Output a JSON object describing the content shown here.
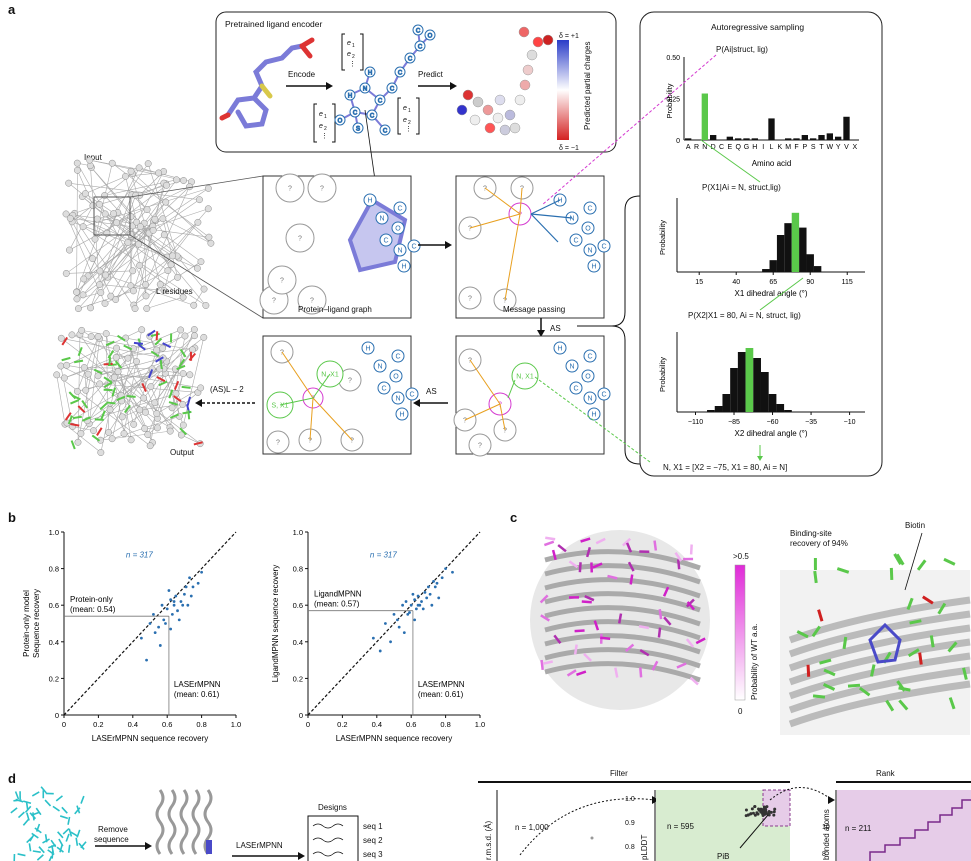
{
  "panel_labels": {
    "a": "a",
    "b": "b",
    "c": "c",
    "d": "d"
  },
  "panel_a": {
    "encoder_title": "Pretrained ligand encoder",
    "encode_label": "Encode",
    "predict_label": "Predict",
    "charges_label": "Predicted partial charges",
    "delta_plus": "δ = +1",
    "delta_minus": "δ = −1",
    "embed_labels": [
      "e1",
      "e2",
      "⋮"
    ],
    "input_label": "Input",
    "l_residues": "L residues",
    "graph_label": "Protein–ligand graph",
    "message_label": "Message passing",
    "as_label": "AS",
    "as_power": "(AS)L − 2",
    "output_label": "Output",
    "ar_title": "Autoregressive sampling",
    "node_q": "?",
    "atom_labels": [
      "H",
      "N",
      "C",
      "O",
      "C",
      "N",
      "C",
      "H"
    ],
    "assigned_nodes": [
      "N, X1",
      "N, X1",
      "S, X1"
    ],
    "prob_A_label": "P(Ai|struct, lig)",
    "prob_X1_label": "P(X1|Ai = N, struct,lig)",
    "prob_X2_label": "P(X2|X1 = 80, Ai = N, struct, lig)",
    "final_assign": "N, X1 = [X2 = −75, X1 = 80, Ai = N]"
  },
  "panel_b": {
    "legend_n": "n = 317",
    "xticks": [
      "0",
      "0.2",
      "0.4",
      "0.6",
      "0.8",
      "1.0"
    ],
    "yticks": [
      "0",
      "0.2",
      "0.4",
      "0.6",
      "0.8",
      "1.0"
    ]
  },
  "panel_c": {
    "colorbar_title": "Probability of WT a.a.",
    "colorbar_top": ">0.5",
    "colorbar_bottom": "0",
    "binding_site": "Binding-site recovery of 94%",
    "biotin": "Biotin"
  },
  "panel_d": {
    "remove_label": "Remove sequence",
    "lasermpnn_label": "LASErMPNN",
    "designs_title": "Designs",
    "seqs": [
      "seq 1",
      "seq 2",
      "seq 3"
    ],
    "filter_label": "Filter",
    "rank_label": "Rank",
    "n1000": "n = 1,000",
    "n595": "n = 595",
    "n211": "n = 211",
    "ylabel1": "r.m.s.d. (Å)",
    "ylabel2": "pLDDT",
    "ylabel3": "bonded atoms",
    "pib": "PiB",
    "ytick1": "1.0",
    "ytick2": "0.9",
    "ytick3": "0.8",
    "ytick4": "10",
    "ytick5": "8"
  },
  "colors": {
    "green": "#5ac84a",
    "blue": "#2a6fb0",
    "magenta": "#d43ad0",
    "orange": "#e8a020",
    "purple_fill": "#e6cce8",
    "green_fill": "#d8ecd0"
  },
  "chart_data": [
    {
      "type": "bar",
      "xlabel": "Amino acid",
      "ylabel": "Probability",
      "categories": [
        "A",
        "R",
        "N",
        "D",
        "C",
        "E",
        "Q",
        "G",
        "H",
        "I",
        "L",
        "K",
        "M",
        "F",
        "P",
        "S",
        "T",
        "W",
        "Y",
        "V",
        "X"
      ],
      "values": [
        0.01,
        0.0,
        0.28,
        0.03,
        0.0,
        0.02,
        0.01,
        0.01,
        0.01,
        0.0,
        0.13,
        0.0,
        0.01,
        0.01,
        0.03,
        0.01,
        0.03,
        0.04,
        0.02,
        0.14,
        0.0
      ],
      "ylim": [
        0,
        0.5
      ],
      "yticks": [
        "0",
        "0.25",
        "0.50"
      ],
      "highlight": "N"
    },
    {
      "type": "bar",
      "xlabel": "X1 dihedral angle (°)",
      "ylabel": "Probability",
      "x": [
        60,
        65,
        70,
        75,
        80,
        85,
        90,
        95
      ],
      "values": [
        0.02,
        0.08,
        0.25,
        0.33,
        0.4,
        0.3,
        0.12,
        0.04
      ],
      "xticks": [
        "15",
        "40",
        "65",
        "90",
        "115"
      ],
      "xlim": [
        0,
        127
      ],
      "ylim": [
        0,
        0.5
      ],
      "highlight_x": 80
    },
    {
      "type": "bar",
      "xlabel": "X2 dihedral angle (°)",
      "ylabel": "Probability",
      "x": [
        -100,
        -95,
        -90,
        -85,
        -80,
        -75,
        -70,
        -65,
        -60,
        -55,
        -50
      ],
      "values": [
        0.01,
        0.03,
        0.09,
        0.22,
        0.3,
        0.32,
        0.27,
        0.2,
        0.09,
        0.04,
        0.01
      ],
      "xticks": [
        "-110",
        "-85",
        "-60",
        "-35",
        "-10"
      ],
      "xlim": [
        -122,
        0
      ],
      "ylim": [
        0,
        0.4
      ],
      "highlight_x": -75
    },
    {
      "type": "scatter",
      "xlabel": "LASErMPNN sequence recovery",
      "ylabel": "Protein-only model Sequence recovery",
      "xlim": [
        0,
        1
      ],
      "ylim": [
        0,
        1
      ],
      "mean_x": 0.61,
      "mean_y": 0.54,
      "mean_x_label": "LASErMPNN (mean: 0.61)",
      "mean_y_label": "Protein-only (mean: 0.54)",
      "points_x": [
        0.45,
        0.5,
        0.52,
        0.55,
        0.57,
        0.58,
        0.6,
        0.62,
        0.63,
        0.64,
        0.65,
        0.66,
        0.68,
        0.7,
        0.72,
        0.75,
        0.78,
        0.8,
        0.48,
        0.53,
        0.59,
        0.61,
        0.67,
        0.71,
        0.74,
        0.56,
        0.62,
        0.69,
        0.73,
        0.64
      ],
      "points_y": [
        0.42,
        0.5,
        0.55,
        0.48,
        0.6,
        0.52,
        0.58,
        0.63,
        0.55,
        0.6,
        0.65,
        0.57,
        0.62,
        0.66,
        0.6,
        0.7,
        0.72,
        0.78,
        0.3,
        0.45,
        0.5,
        0.68,
        0.52,
        0.7,
        0.65,
        0.38,
        0.47,
        0.6,
        0.75,
        0.62
      ]
    },
    {
      "type": "scatter",
      "xlabel": "LASErMPNN sequence recovery",
      "ylabel": "LigandMPNN sequence recovery",
      "xlim": [
        0,
        1
      ],
      "ylim": [
        0,
        1
      ],
      "mean_x": 0.61,
      "mean_y": 0.57,
      "mean_x_label": "LASErMPNN (mean: 0.61)",
      "mean_y_label": "LigandMPNN (mean: 0.57)",
      "points_x": [
        0.45,
        0.5,
        0.52,
        0.55,
        0.57,
        0.58,
        0.6,
        0.62,
        0.63,
        0.64,
        0.65,
        0.66,
        0.68,
        0.7,
        0.72,
        0.75,
        0.78,
        0.8,
        0.48,
        0.53,
        0.59,
        0.61,
        0.67,
        0.71,
        0.74,
        0.56,
        0.62,
        0.69,
        0.73,
        0.64,
        0.42,
        0.38,
        0.76,
        0.84
      ],
      "points_y": [
        0.5,
        0.55,
        0.52,
        0.6,
        0.62,
        0.55,
        0.6,
        0.63,
        0.58,
        0.65,
        0.6,
        0.62,
        0.67,
        0.7,
        0.6,
        0.72,
        0.75,
        0.8,
        0.4,
        0.48,
        0.56,
        0.66,
        0.58,
        0.66,
        0.7,
        0.45,
        0.52,
        0.64,
        0.73,
        0.6,
        0.35,
        0.42,
        0.64,
        0.78
      ]
    }
  ]
}
